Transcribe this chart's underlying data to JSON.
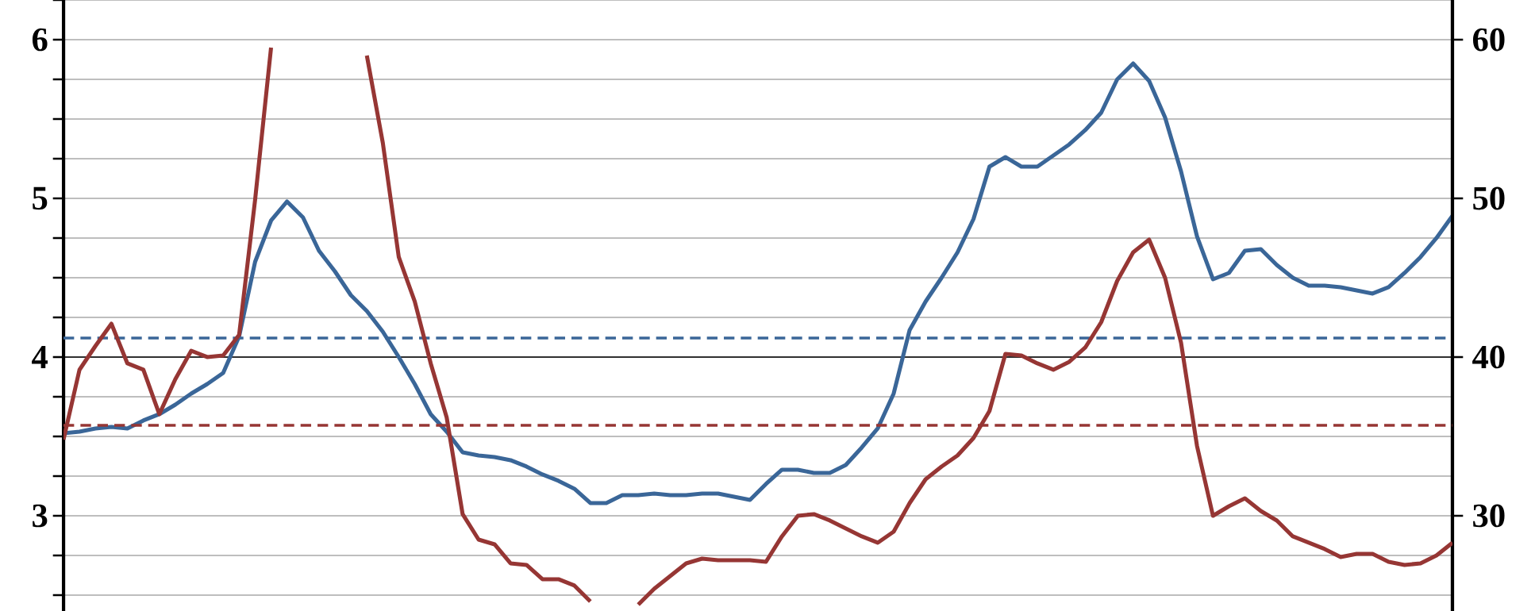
{
  "chart_data": {
    "type": "line",
    "ylim": [
      2.4,
      6.25
    ],
    "y2lim": [
      24,
      62.5
    ],
    "categories": [
      null,
      null,
      null,
      null,
      null,
      null,
      null,
      null,
      null,
      null,
      null,
      null,
      null,
      null,
      null,
      null,
      null,
      null,
      null,
      null,
      null,
      null,
      null,
      null,
      null,
      null,
      null,
      null,
      null,
      null,
      null,
      null,
      null,
      null,
      null,
      null,
      null,
      null,
      null,
      null,
      null,
      null,
      null,
      null,
      null,
      null,
      null,
      null,
      null,
      null,
      null,
      null,
      null,
      null,
      null,
      null,
      null,
      null,
      null,
      null,
      null,
      null,
      null,
      null,
      null,
      null,
      null,
      null,
      null,
      null,
      null,
      null,
      null,
      null,
      null,
      null,
      null,
      null,
      null,
      null,
      null,
      null,
      null,
      null,
      null,
      null,
      null,
      null
    ],
    "yticks": [
      {
        "value": 2.5,
        "label": null
      },
      {
        "value": 2.75,
        "label": null
      },
      3,
      {
        "value": 3.25,
        "label": null
      },
      {
        "value": 3.5,
        "label": null
      },
      {
        "value": 3.75,
        "label": null
      },
      4,
      {
        "value": 4.25,
        "label": null
      },
      {
        "value": 4.5,
        "label": null
      },
      {
        "value": 4.75,
        "label": null
      },
      5,
      {
        "value": 5.25,
        "label": null
      },
      {
        "value": 5.5,
        "label": null
      },
      {
        "value": 5.75,
        "label": null
      },
      6,
      {
        "value": 6.25,
        "label": null
      }
    ],
    "y2ticks": [
      30,
      40,
      50,
      60
    ],
    "grid": "y",
    "line_style": "solid",
    "marker": "none",
    "series": [
      {
        "color": "#3a6698",
        "values": [
          3.52,
          3.53,
          3.55,
          3.56,
          3.55,
          3.6,
          3.64,
          3.7,
          3.77,
          3.83,
          3.9,
          4.13,
          4.6,
          4.86,
          4.98,
          4.88,
          4.67,
          4.54,
          4.39,
          4.29,
          4.16,
          4.0,
          3.83,
          3.64,
          3.53,
          3.4,
          3.38,
          3.37,
          3.35,
          3.31,
          3.26,
          3.22,
          3.17,
          3.08,
          3.08,
          3.13,
          3.13,
          3.14,
          3.13,
          3.13,
          3.14,
          3.14,
          3.12,
          3.1,
          3.2,
          3.29,
          3.29,
          3.27,
          3.27,
          3.32,
          3.43,
          3.55,
          3.77,
          4.17,
          4.35,
          4.5,
          4.66,
          4.87,
          5.2,
          5.26,
          5.2,
          5.2,
          5.27,
          5.34,
          5.43,
          5.54,
          5.75,
          5.85,
          5.74,
          5.51,
          5.17,
          4.76,
          4.49,
          4.53,
          4.67,
          4.68,
          4.58,
          4.5,
          4.45,
          4.45,
          4.44,
          4.42,
          4.4,
          4.44,
          4.53,
          4.63,
          4.75,
          4.89
        ]
      },
      {
        "color": "#963634",
        "axis": "y2",
        "values": [
          34.8,
          39.2,
          40.7,
          42.1,
          39.6,
          39.2,
          36.4,
          38.6,
          40.4,
          40.0,
          40.1,
          41.4,
          49.9,
          59.5,
          null,
          null,
          null,
          null,
          null,
          59.0,
          53.5,
          46.3,
          43.5,
          39.6,
          36.2,
          30.1,
          28.5,
          28.2,
          27.0,
          26.9,
          26.0,
          26.0,
          25.6,
          24.6,
          null,
          null,
          24.4,
          25.4,
          26.2,
          27.0,
          27.3,
          27.2,
          27.2,
          27.2,
          27.1,
          28.7,
          30.0,
          30.1,
          29.7,
          29.2,
          28.7,
          28.3,
          29.0,
          30.8,
          32.3,
          33.1,
          33.8,
          34.9,
          36.6,
          40.2,
          40.1,
          39.6,
          39.2,
          39.7,
          40.6,
          42.2,
          44.8,
          46.6,
          47.4,
          45.0,
          40.9,
          34.4,
          30.0,
          30.6,
          31.1,
          30.3,
          29.7,
          28.7,
          28.3,
          27.9,
          27.4,
          27.6,
          27.6,
          27.1,
          26.9,
          27.0,
          27.5,
          28.3
        ]
      }
    ],
    "ref_lines": [
      {
        "axis": "y",
        "value": 4,
        "color": "#000000",
        "line_style": "solid"
      },
      {
        "axis": "y",
        "value": 4.12,
        "color": "#3a6698",
        "line_style": "dashed"
      },
      {
        "axis": "y2",
        "value": 35.7,
        "color": "#963634",
        "line_style": "dashed"
      }
    ]
  }
}
